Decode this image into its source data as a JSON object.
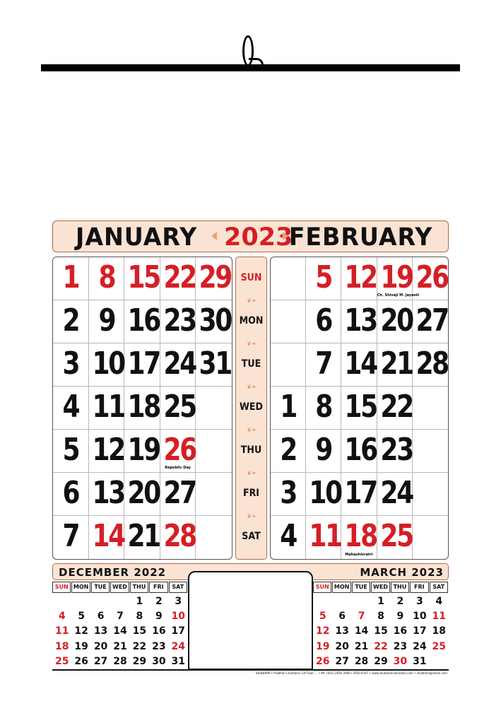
{
  "colors": {
    "red": "#d41f26",
    "black": "#111111",
    "banner": "#fbe3d3",
    "ornament": "#e79068"
  },
  "header": {
    "left_month": "JANUARY",
    "year": "2023",
    "right_month": "FEBRUARY"
  },
  "weekdays": [
    "SUN",
    "MON",
    "TUE",
    "WED",
    "THU",
    "FRI",
    "SAT"
  ],
  "january": {
    "rows": [
      [
        {
          "d": "1",
          "c": "red"
        },
        {
          "d": "8",
          "c": "red"
        },
        {
          "d": "15",
          "c": "red"
        },
        {
          "d": "22",
          "c": "red"
        },
        {
          "d": "29",
          "c": "red"
        }
      ],
      [
        {
          "d": "2",
          "c": "black"
        },
        {
          "d": "9",
          "c": "black"
        },
        {
          "d": "16",
          "c": "black"
        },
        {
          "d": "23",
          "c": "black"
        },
        {
          "d": "30",
          "c": "black"
        }
      ],
      [
        {
          "d": "3",
          "c": "black"
        },
        {
          "d": "10",
          "c": "black"
        },
        {
          "d": "17",
          "c": "black"
        },
        {
          "d": "24",
          "c": "black"
        },
        {
          "d": "31",
          "c": "black"
        }
      ],
      [
        {
          "d": "4",
          "c": "black"
        },
        {
          "d": "11",
          "c": "black"
        },
        {
          "d": "18",
          "c": "black"
        },
        {
          "d": "25",
          "c": "black"
        },
        {
          "d": "",
          "c": "black"
        }
      ],
      [
        {
          "d": "5",
          "c": "black"
        },
        {
          "d": "12",
          "c": "black"
        },
        {
          "d": "19",
          "c": "black"
        },
        {
          "d": "26",
          "c": "red",
          "note": "Republic Day"
        },
        {
          "d": "",
          "c": "black"
        }
      ],
      [
        {
          "d": "6",
          "c": "black"
        },
        {
          "d": "13",
          "c": "black"
        },
        {
          "d": "20",
          "c": "black"
        },
        {
          "d": "27",
          "c": "black"
        },
        {
          "d": "",
          "c": "black"
        }
      ],
      [
        {
          "d": "7",
          "c": "black"
        },
        {
          "d": "14",
          "c": "red"
        },
        {
          "d": "21",
          "c": "black"
        },
        {
          "d": "28",
          "c": "red"
        },
        {
          "d": "",
          "c": "black"
        }
      ]
    ]
  },
  "february": {
    "rows": [
      [
        {
          "d": "",
          "c": "black"
        },
        {
          "d": "5",
          "c": "red"
        },
        {
          "d": "12",
          "c": "red"
        },
        {
          "d": "19",
          "c": "red",
          "note": "Ch. Shivaji M. Jayanti"
        },
        {
          "d": "26",
          "c": "red"
        }
      ],
      [
        {
          "d": "",
          "c": "black"
        },
        {
          "d": "6",
          "c": "black"
        },
        {
          "d": "13",
          "c": "black"
        },
        {
          "d": "20",
          "c": "black"
        },
        {
          "d": "27",
          "c": "black"
        }
      ],
      [
        {
          "d": "",
          "c": "black"
        },
        {
          "d": "7",
          "c": "black"
        },
        {
          "d": "14",
          "c": "black"
        },
        {
          "d": "21",
          "c": "black"
        },
        {
          "d": "28",
          "c": "black"
        }
      ],
      [
        {
          "d": "1",
          "c": "black"
        },
        {
          "d": "8",
          "c": "black"
        },
        {
          "d": "15",
          "c": "black"
        },
        {
          "d": "22",
          "c": "black"
        },
        {
          "d": "",
          "c": "black"
        }
      ],
      [
        {
          "d": "2",
          "c": "black"
        },
        {
          "d": "9",
          "c": "black"
        },
        {
          "d": "16",
          "c": "black"
        },
        {
          "d": "23",
          "c": "black"
        },
        {
          "d": "",
          "c": "black"
        }
      ],
      [
        {
          "d": "3",
          "c": "black"
        },
        {
          "d": "10",
          "c": "black"
        },
        {
          "d": "17",
          "c": "black"
        },
        {
          "d": "24",
          "c": "black"
        },
        {
          "d": "",
          "c": "black"
        }
      ],
      [
        {
          "d": "4",
          "c": "black"
        },
        {
          "d": "11",
          "c": "red"
        },
        {
          "d": "18",
          "c": "red",
          "note": "Mahashivratri"
        },
        {
          "d": "25",
          "c": "red"
        },
        {
          "d": "",
          "c": "black"
        }
      ]
    ]
  },
  "mini_headers": [
    "SUN",
    "MON",
    "TUE",
    "WED",
    "THU",
    "FRI",
    "SAT"
  ],
  "december": {
    "title": "DECEMBER 2022",
    "weeks": [
      [
        {
          "d": "",
          "c": "black"
        },
        {
          "d": "",
          "c": "black"
        },
        {
          "d": "",
          "c": "black"
        },
        {
          "d": "",
          "c": "black"
        },
        {
          "d": "1",
          "c": "black"
        },
        {
          "d": "2",
          "c": "black"
        },
        {
          "d": "3",
          "c": "black"
        }
      ],
      [
        {
          "d": "4",
          "c": "red"
        },
        {
          "d": "5",
          "c": "black"
        },
        {
          "d": "6",
          "c": "black"
        },
        {
          "d": "7",
          "c": "black"
        },
        {
          "d": "8",
          "c": "black"
        },
        {
          "d": "9",
          "c": "black"
        },
        {
          "d": "10",
          "c": "red"
        }
      ],
      [
        {
          "d": "11",
          "c": "red"
        },
        {
          "d": "12",
          "c": "black"
        },
        {
          "d": "13",
          "c": "black"
        },
        {
          "d": "14",
          "c": "black"
        },
        {
          "d": "15",
          "c": "black"
        },
        {
          "d": "16",
          "c": "black"
        },
        {
          "d": "17",
          "c": "black"
        }
      ],
      [
        {
          "d": "18",
          "c": "red"
        },
        {
          "d": "19",
          "c": "black"
        },
        {
          "d": "20",
          "c": "black"
        },
        {
          "d": "21",
          "c": "black"
        },
        {
          "d": "22",
          "c": "black"
        },
        {
          "d": "23",
          "c": "black"
        },
        {
          "d": "24",
          "c": "red"
        }
      ],
      [
        {
          "d": "25",
          "c": "red"
        },
        {
          "d": "26",
          "c": "black"
        },
        {
          "d": "27",
          "c": "black"
        },
        {
          "d": "28",
          "c": "black"
        },
        {
          "d": "29",
          "c": "black"
        },
        {
          "d": "30",
          "c": "black"
        },
        {
          "d": "31",
          "c": "black"
        }
      ]
    ]
  },
  "march": {
    "title": "MARCH 2023",
    "weeks": [
      [
        {
          "d": "",
          "c": "black"
        },
        {
          "d": "",
          "c": "black"
        },
        {
          "d": "",
          "c": "black"
        },
        {
          "d": "1",
          "c": "black"
        },
        {
          "d": "2",
          "c": "black"
        },
        {
          "d": "3",
          "c": "black"
        },
        {
          "d": "4",
          "c": "black"
        }
      ],
      [
        {
          "d": "5",
          "c": "red"
        },
        {
          "d": "6",
          "c": "black"
        },
        {
          "d": "7",
          "c": "red"
        },
        {
          "d": "8",
          "c": "black"
        },
        {
          "d": "9",
          "c": "black"
        },
        {
          "d": "10",
          "c": "black"
        },
        {
          "d": "11",
          "c": "red"
        }
      ],
      [
        {
          "d": "12",
          "c": "red"
        },
        {
          "d": "13",
          "c": "black"
        },
        {
          "d": "14",
          "c": "black"
        },
        {
          "d": "15",
          "c": "black"
        },
        {
          "d": "16",
          "c": "black"
        },
        {
          "d": "17",
          "c": "black"
        },
        {
          "d": "18",
          "c": "black"
        }
      ],
      [
        {
          "d": "19",
          "c": "red"
        },
        {
          "d": "20",
          "c": "black"
        },
        {
          "d": "21",
          "c": "black"
        },
        {
          "d": "22",
          "c": "red"
        },
        {
          "d": "23",
          "c": "black"
        },
        {
          "d": "24",
          "c": "black"
        },
        {
          "d": "25",
          "c": "red"
        }
      ],
      [
        {
          "d": "26",
          "c": "red"
        },
        {
          "d": "27",
          "c": "black"
        },
        {
          "d": "28",
          "c": "black"
        },
        {
          "d": "29",
          "c": "black"
        },
        {
          "d": "30",
          "c": "red"
        },
        {
          "d": "31",
          "c": "black"
        },
        {
          "d": "",
          "c": "black"
        }
      ]
    ]
  },
  "footer": "SHUBHAM • Pradhan Chambers 1st Floor ... • PH: (022) 2650 2000 / 2650 8787 • www.shubhamcalendars.com • shubham@email.com"
}
